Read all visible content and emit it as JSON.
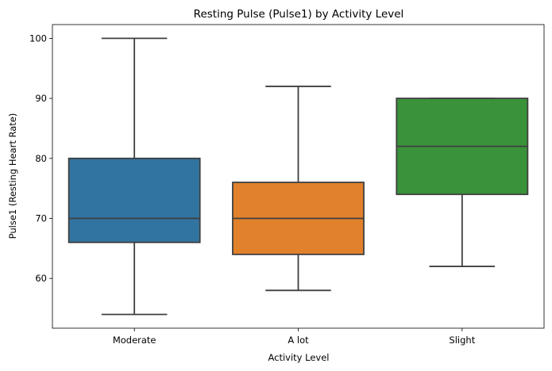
{
  "chart_data": {
    "type": "box",
    "title": "Resting Pulse (Pulse1) by Activity Level",
    "xlabel": "Activity Level",
    "ylabel": "Pulse1 (Resting Heart Rate)",
    "ylim": [
      51.7,
      102.3
    ],
    "yticks": [
      60,
      70,
      80,
      90,
      100
    ],
    "ytick_labels": [
      "60",
      "70",
      "80",
      "90",
      "100"
    ],
    "categories": [
      "Moderate",
      "A lot",
      "Slight"
    ],
    "boxes": [
      {
        "category": "Moderate",
        "whisker_low": 54,
        "q1": 66,
        "median": 70,
        "q3": 80,
        "whisker_high": 100,
        "color": "#3274a1"
      },
      {
        "category": "A lot",
        "whisker_low": 58,
        "q1": 64,
        "median": 70,
        "q3": 76,
        "whisker_high": 92,
        "color": "#e1812c"
      },
      {
        "category": "Slight",
        "whisker_low": 62,
        "q1": 74,
        "median": 82,
        "q3": 90,
        "whisker_high": 90,
        "color": "#3a923a"
      }
    ],
    "line_color": "#3f3f3f",
    "grid": false,
    "legend": "none"
  }
}
